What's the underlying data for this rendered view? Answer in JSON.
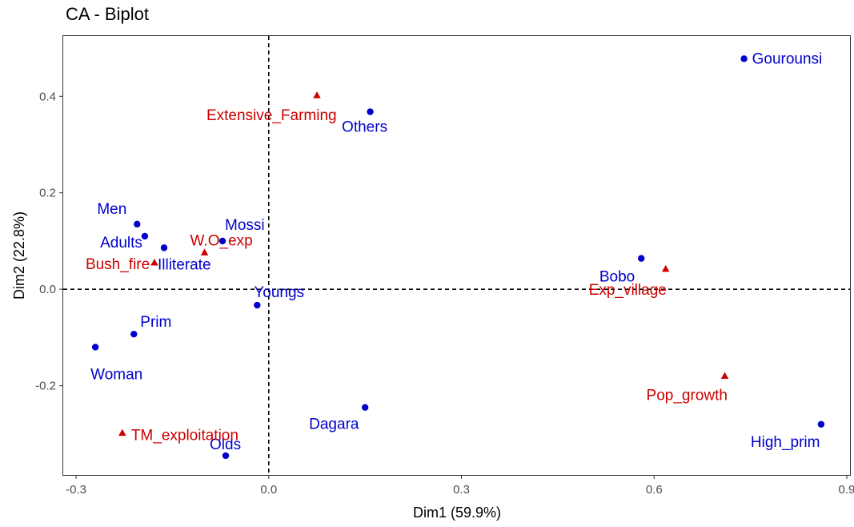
{
  "chart_data": {
    "type": "scatter",
    "title": "CA - Biplot",
    "xlabel": "Dim1 (59.9%)",
    "ylabel": "Dim2 (22.8%)",
    "xlim": [
      -0.32,
      0.905
    ],
    "ylim": [
      -0.385,
      0.525
    ],
    "xticks": [
      -0.3,
      0.0,
      0.3,
      0.6,
      0.9
    ],
    "xtick_labels": [
      "-0.3",
      "0.0",
      "0.3",
      "0.6",
      "0.9"
    ],
    "yticks": [
      -0.2,
      0.0,
      0.2,
      0.4
    ],
    "ytick_labels": [
      "-0.2",
      "0.0",
      "0.2",
      "0.4"
    ],
    "grid": false,
    "reference_lines": {
      "x": 0.0,
      "y": 0.0,
      "style": "dashed"
    },
    "series": [
      {
        "marker": "circle",
        "color": "#0000cc",
        "points": [
          {
            "label": "Gourounsi",
            "x": 0.74,
            "y": 0.478
          },
          {
            "label": "Others",
            "x": 0.158,
            "y": 0.368
          },
          {
            "label": "Men",
            "x": -0.205,
            "y": 0.135
          },
          {
            "label": "Mossi",
            "x": -0.072,
            "y": 0.1
          },
          {
            "label": "Adults",
            "x": -0.193,
            "y": 0.11
          },
          {
            "label": "Illiterate",
            "x": -0.163,
            "y": 0.086
          },
          {
            "label": "Bobo",
            "x": 0.58,
            "y": 0.064
          },
          {
            "label": "Youngs",
            "x": -0.018,
            "y": -0.033
          },
          {
            "label": "Prim",
            "x": -0.21,
            "y": -0.093
          },
          {
            "label": "Woman",
            "x": -0.27,
            "y": -0.12
          },
          {
            "label": "Dagara",
            "x": 0.15,
            "y": -0.245
          },
          {
            "label": "High_prim",
            "x": 0.86,
            "y": -0.28
          },
          {
            "label": "Olds",
            "x": -0.067,
            "y": -0.345
          }
        ]
      },
      {
        "marker": "triangle",
        "color": "#cc0000",
        "points": [
          {
            "label": "Extensive_Farming",
            "x": 0.075,
            "y": 0.402
          },
          {
            "label": "W.O_exp",
            "x": -0.1,
            "y": 0.076
          },
          {
            "label": "Bush_fire",
            "x": -0.178,
            "y": 0.055
          },
          {
            "label": "Exp_village",
            "x": 0.618,
            "y": 0.042
          },
          {
            "label": "Pop_growth",
            "x": 0.71,
            "y": -0.18
          },
          {
            "label": "TM_exploitation",
            "x": -0.228,
            "y": -0.298
          }
        ]
      }
    ]
  }
}
